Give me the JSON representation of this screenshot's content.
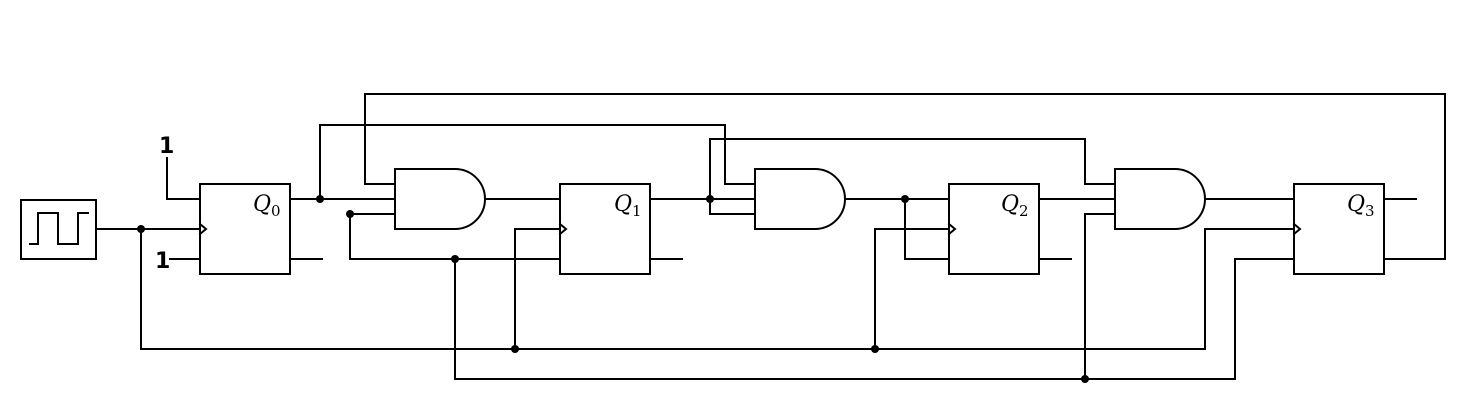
{
  "diagram": {
    "constants": [
      "1",
      "1"
    ],
    "flip_flops": [
      {
        "output": "Q",
        "index": "0"
      },
      {
        "output": "Q",
        "index": "1"
      },
      {
        "output": "Q",
        "index": "2"
      },
      {
        "output": "Q",
        "index": "3"
      }
    ],
    "and_gates": 3,
    "clock_source": "square-wave-icon"
  }
}
